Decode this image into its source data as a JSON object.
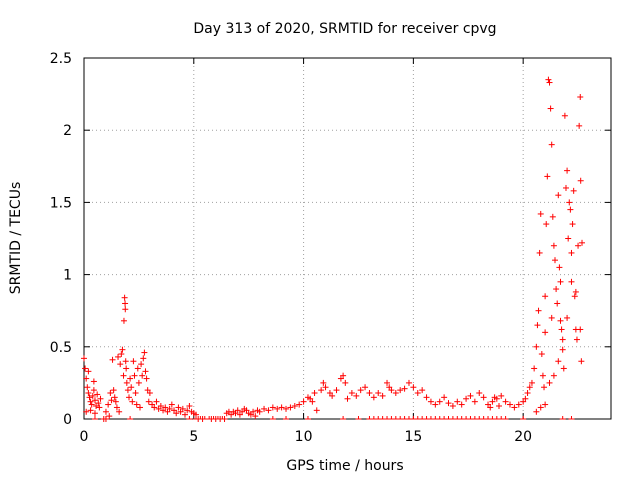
{
  "chart_data": {
    "type": "scatter",
    "title": "Day 313 of 2020, SRMTID for receiver cpvg",
    "xlabel": "GPS time / hours",
    "ylabel": "SRMTID / TECUs",
    "xlim": [
      0,
      24
    ],
    "ylim": [
      0,
      2.5
    ],
    "xticks": [
      0,
      5,
      10,
      15,
      20
    ],
    "xtick_labels": [
      "0",
      "5",
      "10",
      "15",
      "20"
    ],
    "yticks": [
      0,
      0.5,
      1,
      1.5,
      2,
      2.5
    ],
    "ytick_labels": [
      "0",
      "0.5",
      "1",
      "1.5",
      "2",
      "2.5"
    ],
    "grid": true,
    "marker": "+",
    "color": "#ff0000",
    "series": [
      {
        "name": "SRMTID",
        "points": [
          [
            0.0,
            0.42
          ],
          [
            0.05,
            0.35
          ],
          [
            0.1,
            0.28
          ],
          [
            0.15,
            0.22
          ],
          [
            0.2,
            0.18
          ],
          [
            0.25,
            0.15
          ],
          [
            0.3,
            0.12
          ],
          [
            0.35,
            0.1
          ],
          [
            0.4,
            0.16
          ],
          [
            0.45,
            0.2
          ],
          [
            0.5,
            0.13
          ],
          [
            0.55,
            0.09
          ],
          [
            0.6,
            0.17
          ],
          [
            0.65,
            0.11
          ],
          [
            0.7,
            0.08
          ],
          [
            0.75,
            0.14
          ],
          [
            0.1,
            0.05
          ],
          [
            0.3,
            0.06
          ],
          [
            0.5,
            0.04
          ],
          [
            0.2,
            0.33
          ],
          [
            0.45,
            0.26
          ],
          [
            0.9,
            0.0
          ],
          [
            1.0,
            0.05
          ],
          [
            1.0,
            0.0
          ],
          [
            1.1,
            0.1
          ],
          [
            1.15,
            0.02
          ],
          [
            1.2,
            0.18
          ],
          [
            1.25,
            0.13
          ],
          [
            1.3,
            0.41
          ],
          [
            1.35,
            0.2
          ],
          [
            1.4,
            0.15
          ],
          [
            1.45,
            0.12
          ],
          [
            1.5,
            0.08
          ],
          [
            1.55,
            0.43
          ],
          [
            1.6,
            0.05
          ],
          [
            1.65,
            0.38
          ],
          [
            1.7,
            0.45
          ],
          [
            1.75,
            0.48
          ],
          [
            1.8,
            0.3
          ],
          [
            1.82,
            0.68
          ],
          [
            1.85,
            0.84
          ],
          [
            1.87,
            0.8
          ],
          [
            1.88,
            0.76
          ],
          [
            1.9,
            0.4
          ],
          [
            1.92,
            0.35
          ],
          [
            1.95,
            0.25
          ],
          [
            2.0,
            0.2
          ],
          [
            2.05,
            0.15
          ],
          [
            2.1,
            0.28
          ],
          [
            2.15,
            0.22
          ],
          [
            2.2,
            0.12
          ],
          [
            2.25,
            0.4
          ],
          [
            2.3,
            0.3
          ],
          [
            2.35,
            0.18
          ],
          [
            2.4,
            0.1
          ],
          [
            2.45,
            0.35
          ],
          [
            2.5,
            0.25
          ],
          [
            2.55,
            0.08
          ],
          [
            2.6,
            0.38
          ],
          [
            2.65,
            0.3
          ],
          [
            2.7,
            0.42
          ],
          [
            2.75,
            0.46
          ],
          [
            2.8,
            0.33
          ],
          [
            2.85,
            0.28
          ],
          [
            2.9,
            0.2
          ],
          [
            2.95,
            0.12
          ],
          [
            3.0,
            0.18
          ],
          [
            3.1,
            0.1
          ],
          [
            3.2,
            0.08
          ],
          [
            3.3,
            0.12
          ],
          [
            3.4,
            0.07
          ],
          [
            3.5,
            0.09
          ],
          [
            3.6,
            0.06
          ],
          [
            3.7,
            0.08
          ],
          [
            3.8,
            0.05
          ],
          [
            3.9,
            0.07
          ],
          [
            4.0,
            0.1
          ],
          [
            4.1,
            0.06
          ],
          [
            4.2,
            0.04
          ],
          [
            4.3,
            0.08
          ],
          [
            4.4,
            0.05
          ],
          [
            4.5,
            0.07
          ],
          [
            4.6,
            0.03
          ],
          [
            4.7,
            0.06
          ],
          [
            4.8,
            0.09
          ],
          [
            4.9,
            0.05
          ],
          [
            5.0,
            0.04
          ],
          [
            5.1,
            0.03
          ],
          [
            5.2,
            0.0
          ],
          [
            5.4,
            0.0
          ],
          [
            5.8,
            0.0
          ],
          [
            6.0,
            0.0
          ],
          [
            6.2,
            0.0
          ],
          [
            6.4,
            0.0
          ],
          [
            6.5,
            0.04
          ],
          [
            6.6,
            0.05
          ],
          [
            6.7,
            0.03
          ],
          [
            6.8,
            0.05
          ],
          [
            6.9,
            0.04
          ],
          [
            7.0,
            0.06
          ],
          [
            7.1,
            0.03
          ],
          [
            7.2,
            0.05
          ],
          [
            7.3,
            0.07
          ],
          [
            7.4,
            0.06
          ],
          [
            7.5,
            0.04
          ],
          [
            7.6,
            0.03
          ],
          [
            7.7,
            0.05
          ],
          [
            7.8,
            0.02
          ],
          [
            7.9,
            0.06
          ],
          [
            8.0,
            0.05
          ],
          [
            8.2,
            0.07
          ],
          [
            8.4,
            0.06
          ],
          [
            8.6,
            0.08
          ],
          [
            8.8,
            0.07
          ],
          [
            9.0,
            0.08
          ],
          [
            9.2,
            0.07
          ],
          [
            9.4,
            0.08
          ],
          [
            9.6,
            0.09
          ],
          [
            9.8,
            0.1
          ],
          [
            10.0,
            0.12
          ],
          [
            10.2,
            0.15
          ],
          [
            10.3,
            0.14
          ],
          [
            10.4,
            0.12
          ],
          [
            10.5,
            0.18
          ],
          [
            10.6,
            0.06
          ],
          [
            10.8,
            0.2
          ],
          [
            10.9,
            0.25
          ],
          [
            11.0,
            0.22
          ],
          [
            11.2,
            0.18
          ],
          [
            11.3,
            0.16
          ],
          [
            11.5,
            0.2
          ],
          [
            11.7,
            0.28
          ],
          [
            11.8,
            0.3
          ],
          [
            11.9,
            0.25
          ],
          [
            12.0,
            0.14
          ],
          [
            12.2,
            0.18
          ],
          [
            12.4,
            0.16
          ],
          [
            12.6,
            0.2
          ],
          [
            12.8,
            0.22
          ],
          [
            13.0,
            0.18
          ],
          [
            13.2,
            0.15
          ],
          [
            13.4,
            0.18
          ],
          [
            13.6,
            0.16
          ],
          [
            13.8,
            0.25
          ],
          [
            13.9,
            0.22
          ],
          [
            14.0,
            0.2
          ],
          [
            14.2,
            0.18
          ],
          [
            14.4,
            0.2
          ],
          [
            14.6,
            0.21
          ],
          [
            14.8,
            0.25
          ],
          [
            15.0,
            0.22
          ],
          [
            15.2,
            0.18
          ],
          [
            15.4,
            0.2
          ],
          [
            15.6,
            0.15
          ],
          [
            15.8,
            0.12
          ],
          [
            16.0,
            0.1
          ],
          [
            16.2,
            0.12
          ],
          [
            16.4,
            0.15
          ],
          [
            16.6,
            0.11
          ],
          [
            16.8,
            0.09
          ],
          [
            17.0,
            0.12
          ],
          [
            17.2,
            0.1
          ],
          [
            17.4,
            0.14
          ],
          [
            17.6,
            0.16
          ],
          [
            17.8,
            0.12
          ],
          [
            18.0,
            0.18
          ],
          [
            18.2,
            0.15
          ],
          [
            18.4,
            0.1
          ],
          [
            18.5,
            0.08
          ],
          [
            18.6,
            0.12
          ],
          [
            18.7,
            0.15
          ],
          [
            18.8,
            0.14
          ],
          [
            18.9,
            0.09
          ],
          [
            19.0,
            0.16
          ],
          [
            19.2,
            0.12
          ],
          [
            19.4,
            0.1
          ],
          [
            19.6,
            0.08
          ],
          [
            19.8,
            0.1
          ],
          [
            20.0,
            0.12
          ],
          [
            20.1,
            0.14
          ],
          [
            20.2,
            0.18
          ],
          [
            20.3,
            0.22
          ],
          [
            20.4,
            0.25
          ],
          [
            20.5,
            0.35
          ],
          [
            20.6,
            0.5
          ],
          [
            20.65,
            0.65
          ],
          [
            20.7,
            0.75
          ],
          [
            20.75,
            1.15
          ],
          [
            20.8,
            1.42
          ],
          [
            20.85,
            0.45
          ],
          [
            20.9,
            0.3
          ],
          [
            20.95,
            0.22
          ],
          [
            21.0,
            0.85
          ],
          [
            21.05,
            1.35
          ],
          [
            21.1,
            1.68
          ],
          [
            21.15,
            2.35
          ],
          [
            21.2,
            2.33
          ],
          [
            21.25,
            2.15
          ],
          [
            21.3,
            1.9
          ],
          [
            21.35,
            1.4
          ],
          [
            21.4,
            1.2
          ],
          [
            21.45,
            1.1
          ],
          [
            21.5,
            0.9
          ],
          [
            21.55,
            0.8
          ],
          [
            21.6,
            1.55
          ],
          [
            21.65,
            1.05
          ],
          [
            21.7,
            0.95
          ],
          [
            21.75,
            0.62
          ],
          [
            21.8,
            0.48
          ],
          [
            21.85,
            0.35
          ],
          [
            21.9,
            2.1
          ],
          [
            21.95,
            1.6
          ],
          [
            22.0,
            1.72
          ],
          [
            22.05,
            1.25
          ],
          [
            22.1,
            1.5
          ],
          [
            22.15,
            1.45
          ],
          [
            22.2,
            1.15
          ],
          [
            22.25,
            1.35
          ],
          [
            22.3,
            1.58
          ],
          [
            22.35,
            0.85
          ],
          [
            22.4,
            0.62
          ],
          [
            22.45,
            0.55
          ],
          [
            22.5,
            1.2
          ],
          [
            22.55,
            2.03
          ],
          [
            22.6,
            2.23
          ],
          [
            22.62,
            1.65
          ],
          [
            22.65,
            0.4
          ],
          [
            22.68,
            1.22
          ],
          [
            20.6,
            0.05
          ],
          [
            20.8,
            0.08
          ],
          [
            21.0,
            0.1
          ],
          [
            21.2,
            0.25
          ],
          [
            21.4,
            0.3
          ],
          [
            21.6,
            0.4
          ],
          [
            21.8,
            0.55
          ],
          [
            22.0,
            0.7
          ],
          [
            22.2,
            0.95
          ],
          [
            22.4,
            0.88
          ],
          [
            22.6,
            0.62
          ],
          [
            21.0,
            0.6
          ],
          [
            21.3,
            0.7
          ],
          [
            21.7,
            0.68
          ]
        ]
      }
    ],
    "zero_points_x": [
      0.5,
      1.0,
      2.1,
      4.8,
      5.1,
      5.3,
      5.5,
      5.7,
      5.9,
      6.1,
      6.3,
      8.6,
      9.2,
      10.2,
      11.8,
      12.5,
      13.0,
      13.2,
      13.4,
      13.6,
      13.8,
      14.0,
      14.2,
      14.4,
      14.6,
      14.8,
      15.0,
      15.2,
      15.4,
      15.6,
      15.8,
      16.0,
      16.2,
      16.4,
      16.6,
      16.8,
      17.0,
      17.2,
      17.4,
      17.6,
      17.8,
      18.0,
      18.2,
      18.4,
      18.6,
      18.8,
      19.0,
      19.2,
      20.0,
      21.8,
      22.2
    ]
  }
}
